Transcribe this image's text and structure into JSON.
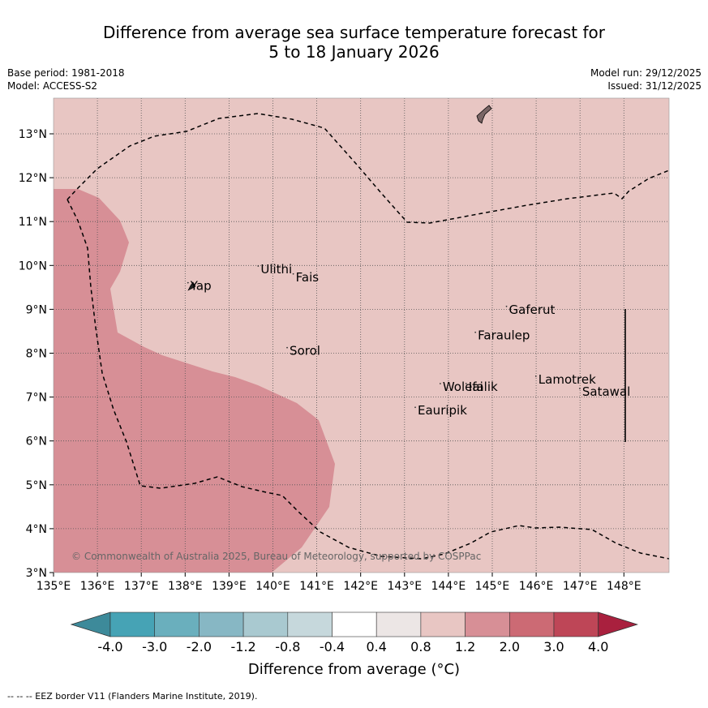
{
  "title": {
    "line1": "Difference from average sea surface temperature forecast for",
    "line2": "5 to 18 January 2026"
  },
  "meta": {
    "base_period": "Base period: 1981-2018",
    "model": "Model: ACCESS-S2",
    "model_run": "Model run: 29/12/2025",
    "issued": "Issued: 31/12/2025"
  },
  "map": {
    "lon_range": [
      135,
      149
    ],
    "lat_range": [
      3,
      13.8
    ],
    "lon_ticks": [
      "135°E",
      "136°E",
      "137°E",
      "138°E",
      "139°E",
      "140°E",
      "141°E",
      "142°E",
      "143°E",
      "144°E",
      "145°E",
      "146°E",
      "147°E",
      "148°E"
    ],
    "lat_ticks": [
      "3°N",
      "4°N",
      "5°N",
      "6°N",
      "7°N",
      "8°N",
      "9°N",
      "10°N",
      "11°N",
      "12°N",
      "13°N"
    ],
    "background_anomaly_band": "0.8 to 1.2",
    "warm_region_band": "1.2 to 2.0",
    "places": [
      {
        "name": "Ulithi",
        "lon": 139.72,
        "lat": 9.82
      },
      {
        "name": "Fais",
        "lon": 140.52,
        "lat": 9.64
      },
      {
        "name": "Yap",
        "lon": 138.12,
        "lat": 9.44
      },
      {
        "name": "Gaferut",
        "lon": 145.38,
        "lat": 8.9
      },
      {
        "name": "Faraulep",
        "lon": 144.67,
        "lat": 8.31
      },
      {
        "name": "Sorol",
        "lon": 140.38,
        "lat": 7.96
      },
      {
        "name": "Lamotrek",
        "lon": 146.05,
        "lat": 7.31
      },
      {
        "name": "Woleai",
        "lon": 143.87,
        "lat": 7.14
      },
      {
        "name": "Ifalik",
        "lon": 144.46,
        "lat": 7.14
      },
      {
        "name": "Satawal",
        "lon": 147.05,
        "lat": 7.03
      },
      {
        "name": "Eauripik",
        "lon": 143.3,
        "lat": 6.6
      }
    ],
    "copyright": "© Commonwealth of Australia 2025, Bureau of Meteorology, supported by COSPPac"
  },
  "colorbar": {
    "label": "Difference from average (°C)",
    "ticks": [
      "-4.0",
      "-3.0",
      "-2.0",
      "-1.2",
      "-0.8",
      "-0.4",
      "0.4",
      "0.8",
      "1.2",
      "2.0",
      "3.0",
      "4.0"
    ],
    "colors": [
      "#3d8a9a",
      "#46a3b5",
      "#6aafbd",
      "#87b7c4",
      "#a9c9d0",
      "#c6d8dc",
      "#ffffff",
      "#ece6e5",
      "#e8c6c3",
      "#d78f96",
      "#cc6a74",
      "#be4657",
      "#a9203e"
    ]
  },
  "footer": "-- -- -- EEZ border V11 (Flanders Marine Institute, 2019)."
}
